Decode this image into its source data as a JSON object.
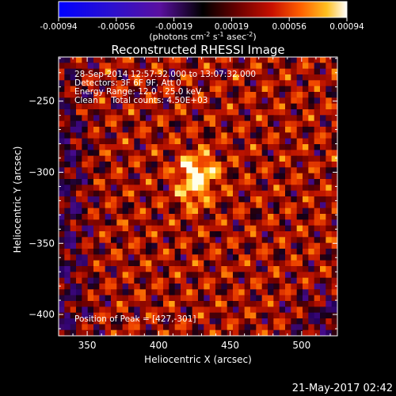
{
  "chart_data": {
    "type": "heatmap",
    "title": "Reconstructed RHESSI Image",
    "xlabel": "Heliocentric X (arcsec)",
    "ylabel": "Heliocentric Y (arcsec)",
    "xlim": [
      330,
      525
    ],
    "ylim": [
      -415,
      -219
    ],
    "xticks": [
      {
        "value": 350,
        "label": "350"
      },
      {
        "value": 400,
        "label": "400"
      },
      {
        "value": 450,
        "label": "450"
      },
      {
        "value": 500,
        "label": "500"
      }
    ],
    "yticks": [
      {
        "value": -250,
        "label": "−250"
      },
      {
        "value": -300,
        "label": "−300"
      },
      {
        "value": -350,
        "label": "−350"
      },
      {
        "value": -400,
        "label": "−400"
      }
    ],
    "colorbar": {
      "range": [
        -0.00094,
        0.00094
      ],
      "ticks": [
        "-0.00094",
        "-0.00056",
        "-0.00019",
        "0.00019",
        "0.00056",
        "0.00094"
      ],
      "unit_main": "(photons cm",
      "unit_sup1": "-2",
      "unit_mid": " s",
      "unit_sup2": "-1",
      "unit_mid2": " asec",
      "unit_sup3": "-2",
      "unit_end": ")"
    },
    "annotations": {
      "line1": "28-Sep-2014 12:57:32.000 to 13:07:32.000",
      "line2": "Detectors: 3F 6F 9F, Att 0",
      "line3": "Energy Range: 12.0 - 25.0 keV",
      "line4": "Clean     Total counts: 4.50E+03",
      "peak": "Position of Peak = [427,-301]"
    },
    "peak_position": [
      427,
      -301
    ],
    "grid": false
  },
  "timestamp": "21-May-2017 02:42"
}
